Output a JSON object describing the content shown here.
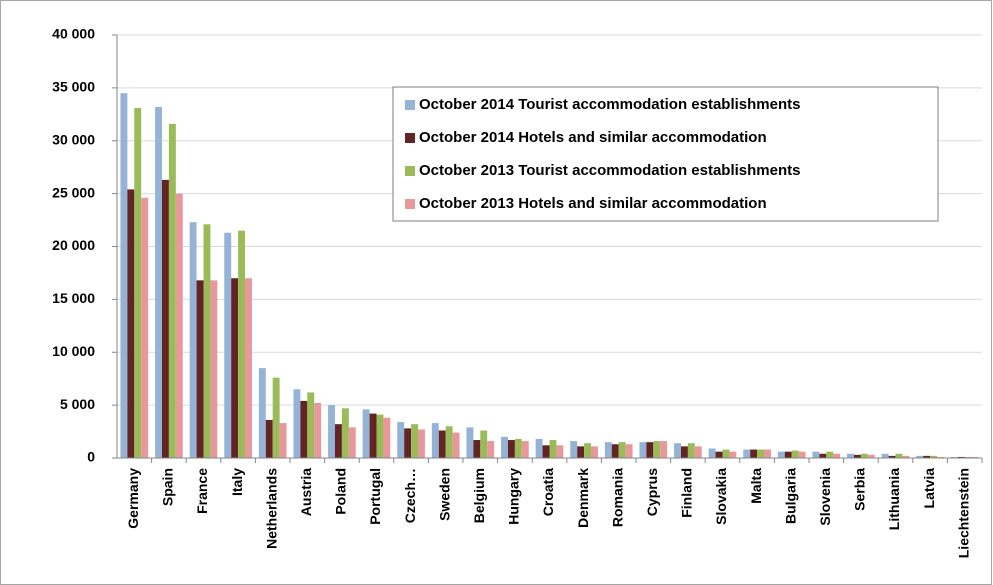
{
  "chart_data": {
    "type": "bar",
    "categories": [
      "Germany",
      "Spain",
      "France",
      "Italy",
      "Netherlands",
      "Austria",
      "Poland",
      "Portugal",
      "Czech…",
      "Sweden",
      "Belgium",
      "Hungary",
      "Croatia",
      "Denmark",
      "Romania",
      "Cyprus",
      "Finland",
      "Slovakia",
      "Malta",
      "Bulgaria",
      "Slovenia",
      "Serbia",
      "Lithuania",
      "Latvia",
      "Liechtenstein"
    ],
    "series": [
      {
        "name": "October 2014 Tourist accommodation establishments",
        "color": "#95b3d7",
        "values": [
          34500,
          33200,
          22300,
          21300,
          8500,
          6500,
          5000,
          4600,
          3400,
          3300,
          2900,
          2000,
          1800,
          1600,
          1500,
          1500,
          1400,
          900,
          800,
          600,
          600,
          400,
          400,
          200,
          100
        ]
      },
      {
        "name": "October 2014 Hotels and similar accommodation",
        "color": "#632523",
        "values": [
          25400,
          26300,
          16800,
          17000,
          3600,
          5400,
          3200,
          4200,
          2800,
          2600,
          1700,
          1700,
          1200,
          1100,
          1300,
          1500,
          1100,
          600,
          800,
          600,
          400,
          300,
          200,
          200,
          100
        ]
      },
      {
        "name": "October 2013 Tourist accommodation establishments",
        "color": "#9bbb59",
        "values": [
          33100,
          31600,
          22100,
          21500,
          7600,
          6200,
          4700,
          4100,
          3200,
          3000,
          2600,
          1800,
          1700,
          1400,
          1500,
          1600,
          1400,
          800,
          800,
          700,
          600,
          400,
          400,
          200,
          100
        ]
      },
      {
        "name": "October 2013 Hotels and similar accommodation",
        "color": "#e6989a",
        "values": [
          24600,
          25000,
          16800,
          17000,
          3300,
          5200,
          2900,
          3800,
          2700,
          2400,
          1600,
          1600,
          1200,
          1100,
          1300,
          1600,
          1100,
          600,
          800,
          600,
          400,
          300,
          200,
          100,
          100
        ]
      }
    ],
    "ylim": [
      0,
      40000
    ],
    "yticks": [
      0,
      {
        "value": 5000,
        "label": "5 000"
      },
      {
        "value": 10000,
        "label": "10 000"
      },
      {
        "value": 15000,
        "label": "15 000"
      },
      {
        "value": 20000,
        "label": "20 000"
      },
      {
        "value": 25000,
        "label": "25 000"
      },
      {
        "value": 30000,
        "label": "30 000"
      },
      {
        "value": 35000,
        "label": "35 000"
      },
      {
        "value": 40000,
        "label": "40 000"
      }
    ],
    "grid": true,
    "legend": "upper right"
  }
}
